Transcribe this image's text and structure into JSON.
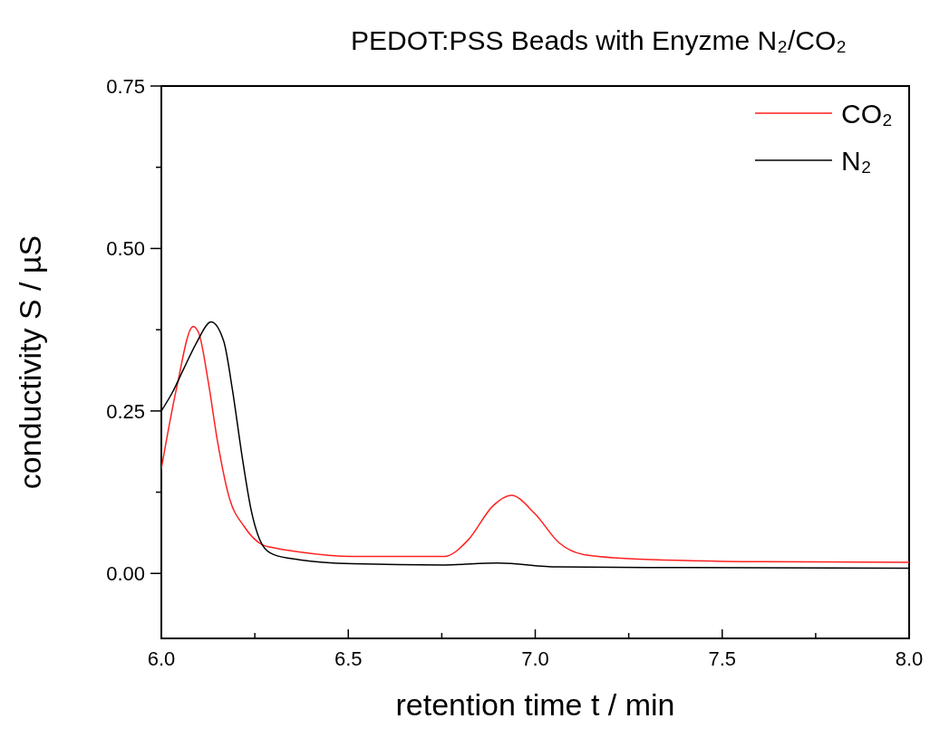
{
  "chart_data": {
    "type": "line",
    "title": "PEDOT:PSS Beads with Enyzme N₂/CO₂",
    "xlabel": "retention time t / min",
    "ylabel": "conductivity S / µS",
    "xlim": [
      6,
      8
    ],
    "xticks": [
      {
        "value": 6,
        "label": "6.0"
      },
      {
        "value": 6.25,
        "label": null
      },
      {
        "value": 6.5,
        "label": "6.5"
      },
      {
        "value": 6.75,
        "label": null
      },
      {
        "value": 7,
        "label": "7.0"
      },
      {
        "value": 7.25,
        "label": null
      },
      {
        "value": 7.5,
        "label": "7.5"
      },
      {
        "value": 7.75,
        "label": null
      },
      {
        "value": 8,
        "label": "8.0"
      }
    ],
    "ylim": [
      -0.1,
      0.75
    ],
    "yticks": [
      {
        "value": 0,
        "label": "0.00"
      },
      {
        "value": 0.125,
        "label": null
      },
      {
        "value": 0.25,
        "label": "0.25"
      },
      {
        "value": 0.375,
        "label": null
      },
      {
        "value": 0.5,
        "label": "0.50"
      },
      {
        "value": 0.625,
        "label": null
      },
      {
        "value": 0.75,
        "label": "0.75"
      }
    ],
    "grid": false,
    "legend": "top right",
    "marker": "none",
    "line_style": "solid",
    "series": [
      {
        "name": "CO₂",
        "color": "#ff2020",
        "x": [
          6,
          6.04,
          6.085,
          6.1,
          6.126,
          6.15,
          6.18,
          6.223,
          6.27,
          6.296,
          6.368,
          6.51,
          6.756,
          6.82,
          6.887,
          6.936,
          6.999,
          7.064,
          7.13,
          7.28,
          7.61,
          8
        ],
        "values": [
          0.161,
          0.283,
          0.38,
          0.37,
          0.293,
          0.204,
          0.12,
          0.071,
          0.044,
          0.04,
          0.033,
          0.026,
          0.026,
          0.051,
          0.104,
          0.12,
          0.092,
          0.047,
          0.029,
          0.022,
          0.018,
          0.017
        ]
      },
      {
        "name": "N₂",
        "color": "#000000",
        "x": [
          6,
          6.03,
          6.06,
          6.095,
          6.133,
          6.167,
          6.19,
          6.216,
          6.24,
          6.27,
          6.3,
          6.37,
          6.51,
          6.756,
          6.9,
          7.06,
          7.39,
          8
        ],
        "values": [
          0.25,
          0.279,
          0.315,
          0.356,
          0.387,
          0.357,
          0.283,
          0.18,
          0.098,
          0.044,
          0.029,
          0.021,
          0.015,
          0.013,
          0.016,
          0.01,
          0.009,
          0.008
        ]
      }
    ]
  }
}
